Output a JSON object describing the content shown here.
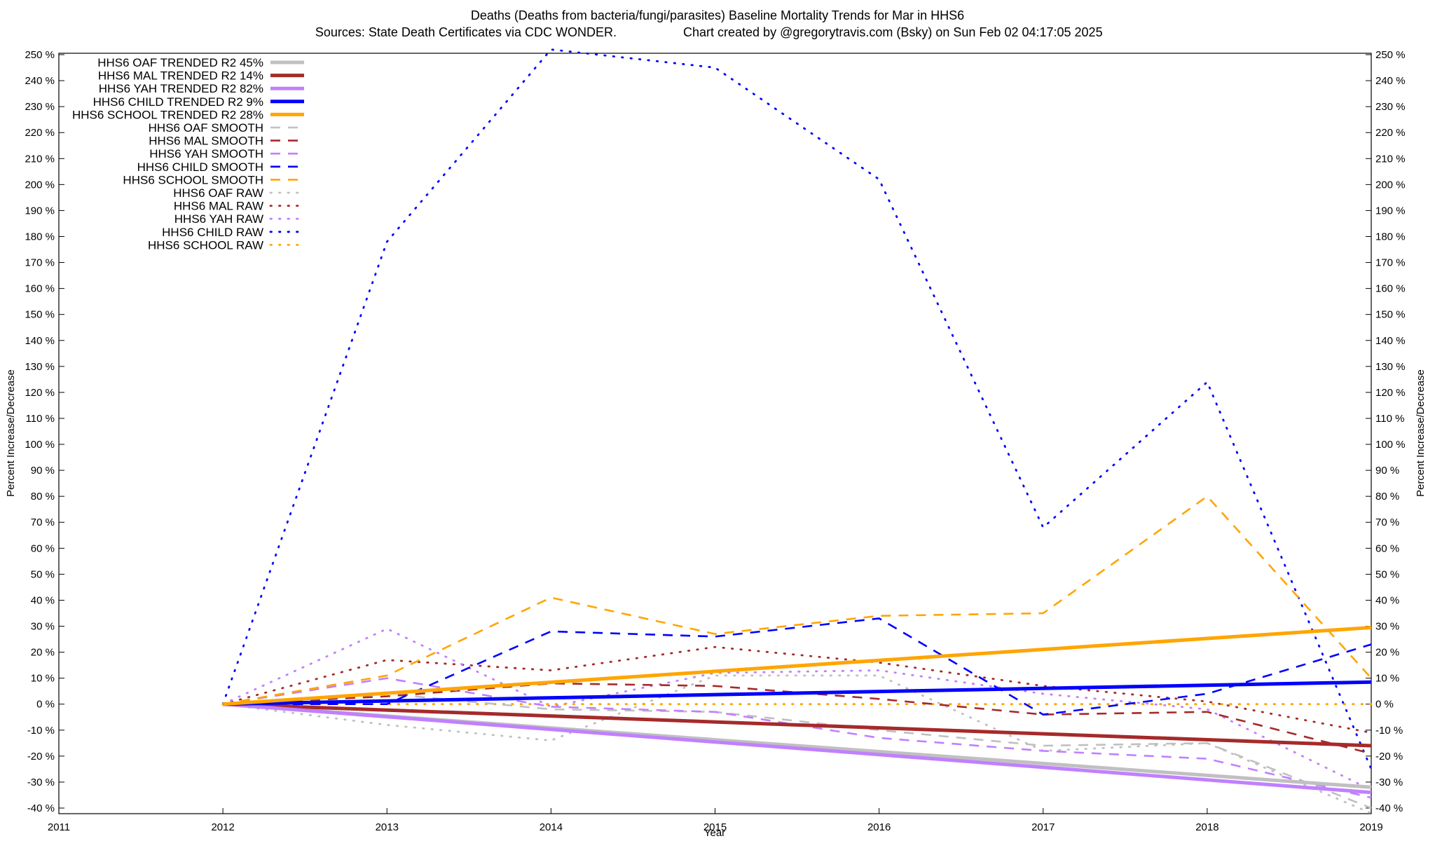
{
  "chart_data": {
    "type": "line",
    "title": "Deaths (Deaths from bacteria/fungi/parasites)  Baseline Mortality Trends for Mar in HHS6",
    "subtitle_left": "Sources: State Death Certificates via CDC WONDER.",
    "subtitle_right": "Chart created by @gregorytravis.com (Bsky) on Sun Feb 02 04:17:05 2025",
    "xlabel": "Year",
    "ylabel": "Percent Increase/Decrease",
    "ylabel_right": "Percent Increase/Decrease",
    "xlim": [
      2011,
      2019
    ],
    "ylim": [
      -40,
      250
    ],
    "x_ticks": [
      "2011",
      "2012",
      "2013",
      "2014",
      "2015",
      "2016",
      "2017",
      "2018",
      "2019"
    ],
    "y_ticks": [
      250,
      240,
      230,
      220,
      210,
      200,
      190,
      180,
      170,
      160,
      150,
      140,
      130,
      120,
      110,
      100,
      90,
      80,
      70,
      60,
      50,
      40,
      30,
      20,
      10,
      0,
      -10,
      -20,
      -30,
      -40
    ],
    "y_tick_labels": [
      "250 %",
      "240 %",
      "230 %",
      "220 %",
      "210 %",
      "200 %",
      "190 %",
      "180 %",
      "170 %",
      "160 %",
      "150 %",
      "140 %",
      "130 %",
      "120 %",
      "110 %",
      "100 %",
      "90 %",
      "80 %",
      "70 %",
      "60 %",
      "50 %",
      "40 %",
      "30 %",
      "20 %",
      "10 %",
      "0 %",
      "-10 %",
      "-20 %",
      "-30 %",
      "-40 %"
    ],
    "grid": false,
    "legend_position": "top-left",
    "colors": {
      "oaf": "#c0c0c0",
      "mal": "#a52a2a",
      "yah": "#c080ff",
      "child": "#0000ff",
      "school": "#ffa500"
    },
    "series": [
      {
        "name": "HHS6 OAF TRENDED R2  45%",
        "key": "oaf",
        "kind": "trend",
        "x": [
          2012,
          2019
        ],
        "y": [
          0,
          -32
        ]
      },
      {
        "name": "HHS6 MAL TRENDED R2  14%",
        "key": "mal",
        "kind": "trend",
        "x": [
          2012,
          2019
        ],
        "y": [
          0,
          -16
        ]
      },
      {
        "name": "HHS6 YAH TRENDED R2  82%",
        "key": "yah",
        "kind": "trend",
        "x": [
          2012,
          2019
        ],
        "y": [
          0,
          -34
        ]
      },
      {
        "name": "HHS6 CHILD TRENDED R2   9%",
        "key": "child",
        "kind": "trend",
        "x": [
          2012,
          2019
        ],
        "y": [
          0,
          8.5
        ]
      },
      {
        "name": "HHS6 SCHOOL TRENDED R2  28%",
        "key": "school",
        "kind": "trend",
        "x": [
          2012,
          2019
        ],
        "y": [
          0,
          29.5
        ]
      },
      {
        "name": "HHS6 OAF SMOOTH",
        "key": "oaf",
        "kind": "smooth",
        "x": [
          2012,
          2013,
          2014,
          2015,
          2016,
          2017,
          2018,
          2019
        ],
        "y": [
          0,
          4,
          -2,
          -3,
          -10,
          -16,
          -15,
          -40
        ]
      },
      {
        "name": "HHS6 MAL SMOOTH",
        "key": "mal",
        "kind": "smooth",
        "x": [
          2012,
          2013,
          2014,
          2015,
          2016,
          2017,
          2018,
          2019
        ],
        "y": [
          0,
          3,
          8,
          7,
          2,
          -4,
          -3,
          -19
        ]
      },
      {
        "name": "HHS6 YAH SMOOTH",
        "key": "yah",
        "kind": "smooth",
        "x": [
          2012,
          2013,
          2014,
          2015,
          2016,
          2017,
          2018,
          2019
        ],
        "y": [
          0,
          10,
          -1,
          -3,
          -13,
          -18,
          -21,
          -36
        ]
      },
      {
        "name": "HHS6 CHILD SMOOTH",
        "key": "child",
        "kind": "smooth",
        "x": [
          2012,
          2013,
          2014,
          2015,
          2016,
          2017,
          2018,
          2019
        ],
        "y": [
          0,
          0,
          28,
          26,
          33,
          -4,
          4,
          23
        ]
      },
      {
        "name": "HHS6 SCHOOL SMOOTH",
        "key": "school",
        "kind": "smooth",
        "x": [
          2012,
          2013,
          2014,
          2015,
          2016,
          2017,
          2018,
          2019
        ],
        "y": [
          0,
          11,
          41,
          27,
          34,
          35,
          80,
          10
        ]
      },
      {
        "name": "HHS6 OAF RAW",
        "key": "oaf",
        "kind": "raw",
        "x": [
          2012,
          2013,
          2014,
          2015,
          2016,
          2017,
          2018,
          2019
        ],
        "y": [
          0,
          -8,
          -14,
          11,
          11,
          -18,
          -15,
          -42
        ]
      },
      {
        "name": "HHS6 MAL RAW",
        "key": "mal",
        "kind": "raw",
        "x": [
          2012,
          2013,
          2014,
          2015,
          2016,
          2017,
          2018,
          2019
        ],
        "y": [
          0,
          17,
          13,
          22,
          16,
          7,
          1,
          -11
        ]
      },
      {
        "name": "HHS6 YAH RAW",
        "key": "yah",
        "kind": "raw",
        "x": [
          2012,
          2013,
          2014,
          2015,
          2016,
          2017,
          2018,
          2019
        ],
        "y": [
          0,
          29,
          -1,
          12,
          13,
          4,
          -2,
          -33
        ]
      },
      {
        "name": "HHS6 CHILD RAW",
        "key": "child",
        "kind": "raw",
        "x": [
          2012,
          2013,
          2014,
          2015,
          2016,
          2017,
          2018,
          2019
        ],
        "y": [
          0,
          178,
          252,
          245,
          202,
          68,
          124,
          -25
        ]
      },
      {
        "name": "HHS6 SCHOOL RAW",
        "key": "school",
        "kind": "raw",
        "x": [
          2012,
          2013,
          2014,
          2015,
          2016,
          2017,
          2018,
          2019
        ],
        "y": [
          0,
          0,
          0,
          0,
          0,
          0,
          0,
          0
        ]
      }
    ]
  }
}
